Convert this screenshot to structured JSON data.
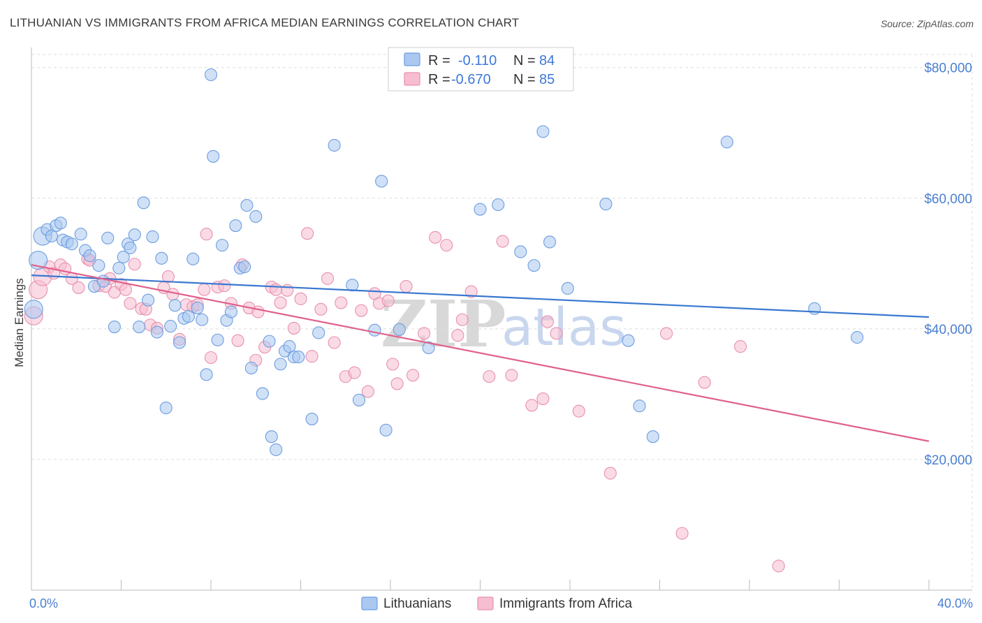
{
  "title": "LITHUANIAN VS IMMIGRANTS FROM AFRICA MEDIAN EARNINGS CORRELATION CHART",
  "source": "Source: ZipAtlas.com",
  "watermark": {
    "part1": "ZIP",
    "part2": "atlas"
  },
  "legend": {
    "series1": {
      "r_label": "R =",
      "r_value": "-0.110",
      "n_label": "N =",
      "n_value": "84"
    },
    "series2": {
      "r_label": "R =",
      "r_value": "-0.670",
      "n_label": "N =",
      "n_value": "85"
    }
  },
  "colors": {
    "blue_fill": "#aac8f0",
    "blue_stroke": "#6d9de0",
    "blue_line": "#3a78d0",
    "pink_fill": "#f6bed0",
    "pink_stroke": "#e890ae",
    "pink_line": "#e0608c",
    "grid": "#dddddd",
    "tick_text": "#4a7fd0"
  },
  "chart_data": {
    "type": "scatter",
    "title": "LITHUANIAN VS IMMIGRANTS FROM AFRICA MEDIAN EARNINGS CORRELATION CHART",
    "xlabel": "",
    "ylabel": "Median Earnings",
    "xlim": [
      0,
      40
    ],
    "ylim": [
      0,
      82000
    ],
    "x_tick_labels": [
      "0.0%",
      "40.0%"
    ],
    "y_ticks": [
      20000,
      40000,
      60000,
      80000
    ],
    "y_tick_labels": [
      "$20,000",
      "$40,000",
      "$60,000",
      "$80,000"
    ],
    "legend_position": "bottom-center",
    "series": [
      {
        "name": "Lithuanians",
        "color": "#6d9de0",
        "r": -0.11,
        "n": 84,
        "trend": {
          "x": [
            0,
            40
          ],
          "y": [
            48200,
            41800
          ]
        },
        "points": [
          [
            0.1,
            43000
          ],
          [
            0.3,
            50500
          ],
          [
            0.5,
            54200
          ],
          [
            0.7,
            55200
          ],
          [
            0.9,
            54200
          ],
          [
            1.1,
            55800
          ],
          [
            1.3,
            56200
          ],
          [
            1.4,
            53600
          ],
          [
            1.6,
            53300
          ],
          [
            1.8,
            53000
          ],
          [
            2.2,
            54500
          ],
          [
            2.4,
            52000
          ],
          [
            2.6,
            51200
          ],
          [
            2.8,
            46500
          ],
          [
            3.0,
            49700
          ],
          [
            3.2,
            47300
          ],
          [
            3.4,
            53900
          ],
          [
            3.7,
            40300
          ],
          [
            3.9,
            49300
          ],
          [
            4.1,
            51000
          ],
          [
            4.3,
            53000
          ],
          [
            4.4,
            52400
          ],
          [
            4.6,
            54400
          ],
          [
            4.8,
            40300
          ],
          [
            5.0,
            59300
          ],
          [
            5.2,
            44400
          ],
          [
            5.4,
            54100
          ],
          [
            5.6,
            39500
          ],
          [
            5.8,
            50800
          ],
          [
            6.0,
            27900
          ],
          [
            6.2,
            40400
          ],
          [
            6.4,
            43600
          ],
          [
            6.6,
            37900
          ],
          [
            6.8,
            41600
          ],
          [
            7.0,
            41900
          ],
          [
            7.2,
            50700
          ],
          [
            7.4,
            43200
          ],
          [
            7.6,
            41400
          ],
          [
            7.8,
            33000
          ],
          [
            8.0,
            78900
          ],
          [
            8.1,
            66400
          ],
          [
            8.3,
            38300
          ],
          [
            8.5,
            52800
          ],
          [
            8.7,
            41300
          ],
          [
            8.9,
            42600
          ],
          [
            9.1,
            55800
          ],
          [
            9.3,
            49300
          ],
          [
            9.5,
            49500
          ],
          [
            9.6,
            58900
          ],
          [
            9.8,
            34000
          ],
          [
            10.0,
            57200
          ],
          [
            10.3,
            30100
          ],
          [
            10.6,
            38100
          ],
          [
            10.7,
            23500
          ],
          [
            10.9,
            21500
          ],
          [
            11.1,
            34600
          ],
          [
            11.3,
            36600
          ],
          [
            11.5,
            37300
          ],
          [
            11.7,
            35700
          ],
          [
            11.9,
            35700
          ],
          [
            12.5,
            26200
          ],
          [
            12.8,
            39400
          ],
          [
            13.5,
            68100
          ],
          [
            14.3,
            46700
          ],
          [
            14.6,
            29100
          ],
          [
            15.3,
            39800
          ],
          [
            15.6,
            62600
          ],
          [
            15.8,
            24500
          ],
          [
            16.4,
            39900
          ],
          [
            17.7,
            37100
          ],
          [
            20.0,
            58300
          ],
          [
            20.8,
            59000
          ],
          [
            21.8,
            51800
          ],
          [
            22.4,
            49700
          ],
          [
            22.8,
            70200
          ],
          [
            23.1,
            53300
          ],
          [
            23.9,
            46200
          ],
          [
            25.6,
            59100
          ],
          [
            26.6,
            38200
          ],
          [
            27.1,
            28200
          ],
          [
            27.7,
            23500
          ],
          [
            31.0,
            68600
          ],
          [
            34.9,
            43100
          ],
          [
            36.8,
            38700
          ]
        ]
      },
      {
        "name": "Immigrants from Africa",
        "color": "#e890ae",
        "r": -0.67,
        "n": 85,
        "trend": {
          "x": [
            0,
            40
          ],
          "y": [
            49800,
            22800
          ]
        },
        "points": [
          [
            0.1,
            42000
          ],
          [
            0.3,
            46000
          ],
          [
            0.5,
            48000
          ],
          [
            0.8,
            49500
          ],
          [
            1.0,
            48500
          ],
          [
            1.3,
            49800
          ],
          [
            1.5,
            49200
          ],
          [
            1.8,
            47700
          ],
          [
            2.1,
            46300
          ],
          [
            2.5,
            50700
          ],
          [
            2.6,
            50500
          ],
          [
            3.0,
            46600
          ],
          [
            3.3,
            46500
          ],
          [
            3.5,
            47700
          ],
          [
            3.7,
            45600
          ],
          [
            4.0,
            46800
          ],
          [
            4.2,
            46000
          ],
          [
            4.4,
            43900
          ],
          [
            4.6,
            49900
          ],
          [
            4.9,
            43100
          ],
          [
            5.1,
            43000
          ],
          [
            5.3,
            40600
          ],
          [
            5.6,
            40100
          ],
          [
            5.9,
            46300
          ],
          [
            6.1,
            48000
          ],
          [
            6.3,
            45300
          ],
          [
            6.6,
            38400
          ],
          [
            6.9,
            43700
          ],
          [
            7.2,
            43400
          ],
          [
            7.4,
            43700
          ],
          [
            7.7,
            46000
          ],
          [
            7.8,
            54500
          ],
          [
            8.0,
            35600
          ],
          [
            8.3,
            46400
          ],
          [
            8.6,
            46600
          ],
          [
            8.9,
            43900
          ],
          [
            9.2,
            38200
          ],
          [
            9.4,
            49800
          ],
          [
            9.7,
            43200
          ],
          [
            10.0,
            35200
          ],
          [
            10.1,
            42600
          ],
          [
            10.4,
            37200
          ],
          [
            10.7,
            46400
          ],
          [
            10.9,
            46000
          ],
          [
            11.1,
            44000
          ],
          [
            11.4,
            45900
          ],
          [
            11.7,
            40100
          ],
          [
            12.0,
            44600
          ],
          [
            12.3,
            54600
          ],
          [
            12.5,
            35800
          ],
          [
            12.9,
            43000
          ],
          [
            13.2,
            47700
          ],
          [
            13.5,
            37900
          ],
          [
            13.8,
            44000
          ],
          [
            14.0,
            32700
          ],
          [
            14.4,
            33300
          ],
          [
            14.7,
            42800
          ],
          [
            15.0,
            30400
          ],
          [
            15.3,
            45400
          ],
          [
            15.5,
            43900
          ],
          [
            15.9,
            44300
          ],
          [
            16.1,
            34600
          ],
          [
            16.3,
            31600
          ],
          [
            16.7,
            46500
          ],
          [
            17.0,
            32900
          ],
          [
            17.5,
            39300
          ],
          [
            18.0,
            54000
          ],
          [
            18.5,
            52800
          ],
          [
            19.0,
            39000
          ],
          [
            19.2,
            41400
          ],
          [
            19.6,
            45700
          ],
          [
            20.4,
            32700
          ],
          [
            21.0,
            53400
          ],
          [
            21.4,
            32900
          ],
          [
            22.3,
            28300
          ],
          [
            22.8,
            29300
          ],
          [
            23.0,
            41100
          ],
          [
            23.4,
            39300
          ],
          [
            24.4,
            27400
          ],
          [
            25.8,
            17900
          ],
          [
            28.3,
            39300
          ],
          [
            29.0,
            8700
          ],
          [
            30.0,
            31800
          ],
          [
            31.6,
            37300
          ],
          [
            33.3,
            3700
          ]
        ]
      }
    ]
  }
}
